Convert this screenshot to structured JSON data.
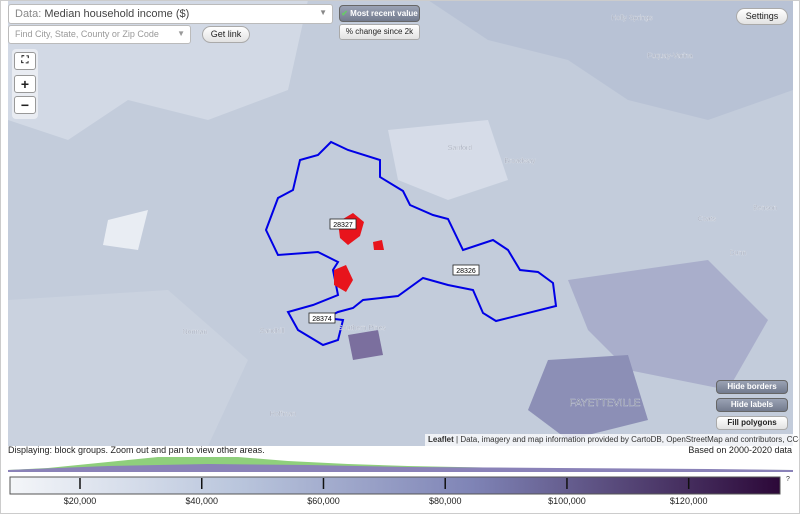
{
  "controls": {
    "data_label": "Data:",
    "data_value": "Median household income ($)",
    "search_placeholder": "Find City, State, County or Zip Code",
    "get_link": "Get link",
    "most_recent": "Most recent value",
    "pct_change": "% change since 2k",
    "settings": "Settings",
    "zoom_in": "+",
    "zoom_out": "−"
  },
  "map": {
    "places": [
      "Holly Springs",
      "Fuquay-Varina",
      "Sanford",
      "Broadway",
      "Coats",
      "Benson",
      "Dunn",
      "Norman",
      "Sandhill",
      "Southern Pines",
      "Hoffman",
      "FAYETTEVILLE"
    ],
    "zip_labels": [
      "28327",
      "28326",
      "28374"
    ],
    "buttons": [
      "Hide borders",
      "Hide labels",
      "Fill polygons"
    ],
    "attribution": {
      "leaflet": "Leaflet",
      "text": "| Data, imagery and map information provided by CartoDB, OpenStreetMap and contributors, CC-BY-SA"
    }
  },
  "status": {
    "displaying": "Displaying: block groups. Zoom out and pan to view other areas.",
    "based_on": "Based on 2000-2020 data"
  },
  "legend": {
    "lim": [
      8500,
      135000
    ],
    "ticks": [
      {
        "value": 20000,
        "label": "$20,000"
      },
      {
        "value": 40000,
        "label": "$40,000"
      },
      {
        "value": 60000,
        "label": "$60,000"
      },
      {
        "value": 80000,
        "label": "$80,000"
      },
      {
        "value": 100000,
        "label": "$100,000"
      },
      {
        "value": 120000,
        "label": "$120,000"
      }
    ],
    "help": "?"
  }
}
